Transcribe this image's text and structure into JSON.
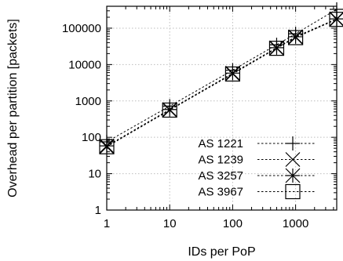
{
  "chart_data": {
    "type": "line",
    "xlabel": "IDs per PoP",
    "ylabel": "Overhead per partition [packets]",
    "x_scale": "log",
    "y_scale": "log",
    "xlim": [
      1,
      4500
    ],
    "ylim": [
      1,
      400000
    ],
    "x_ticks": [
      1,
      10,
      100,
      1000
    ],
    "x_tick_labels": [
      "1",
      "10",
      "100",
      "1000"
    ],
    "y_ticks": [
      1,
      10,
      100,
      1000,
      10000,
      100000
    ],
    "y_tick_labels": [
      "1",
      "10",
      "100",
      "1000",
      "10000",
      "100000"
    ],
    "grid": true,
    "legend_position": "bottom-right",
    "x": [
      1,
      10,
      100,
      500,
      1000,
      4500
    ],
    "series": [
      {
        "name": "AS 1221",
        "marker": "plus",
        "values": [
          75,
          720,
          7000,
          35000,
          70000,
          330000
        ]
      },
      {
        "name": "AS 1239",
        "marker": "cross",
        "values": [
          55,
          560,
          5600,
          28000,
          56000,
          175000
        ]
      },
      {
        "name": "AS 3257",
        "marker": "star",
        "values": [
          58,
          580,
          5800,
          29000,
          58000,
          180000
        ]
      },
      {
        "name": "AS 3967",
        "marker": "square",
        "values": [
          55,
          560,
          5500,
          28000,
          55000,
          175000
        ]
      }
    ]
  }
}
